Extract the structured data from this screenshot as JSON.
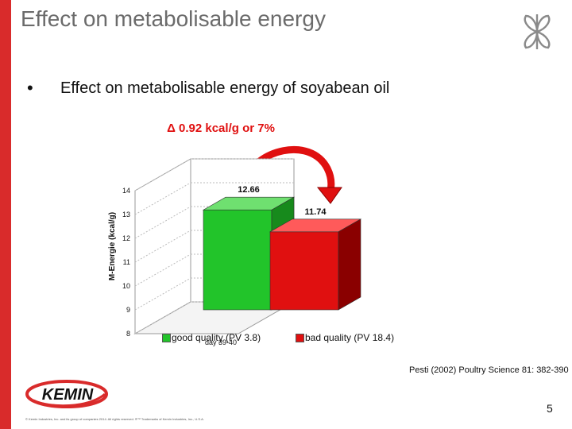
{
  "slide": {
    "title": "Effect on metabolisable energy",
    "bullet": "Effect on metabolisable energy of soyabean oil",
    "delta_label": "Δ 0.92 kcal/g or 7%",
    "source": "Pesti (2002) Poultry Science 81: 382-390",
    "copyright": "© Kemin Industries, Inc. and its group of companies 2014. All rights reserved. ®™ Trademarks of Kemin Industries, Inc., U.S.A.",
    "page_number": "5",
    "logo_text": "KEMIN",
    "colors": {
      "accent_red": "#d92b2b",
      "good": "#22c42a",
      "bad": "#e01010"
    },
    "icons": [
      "leaf-logo-icon",
      "kemin-logo",
      "curved-arrow-icon"
    ]
  },
  "chart_data": {
    "type": "bar",
    "categories": [
      "day 39-40"
    ],
    "series": [
      {
        "name": "good quality (PV 3.8)",
        "values": [
          12.66
        ]
      },
      {
        "name": "bad quality (PV 18.4)",
        "values": [
          11.74
        ]
      }
    ],
    "ylabel": "M-Energie (kcal/g)",
    "ylim": [
      8,
      14
    ],
    "yticks": [
      "8",
      "9",
      "10",
      "11",
      "12",
      "13",
      "14"
    ],
    "data_labels": [
      "12.66",
      "11.74"
    ],
    "legend_position": "bottom",
    "grid": true
  }
}
